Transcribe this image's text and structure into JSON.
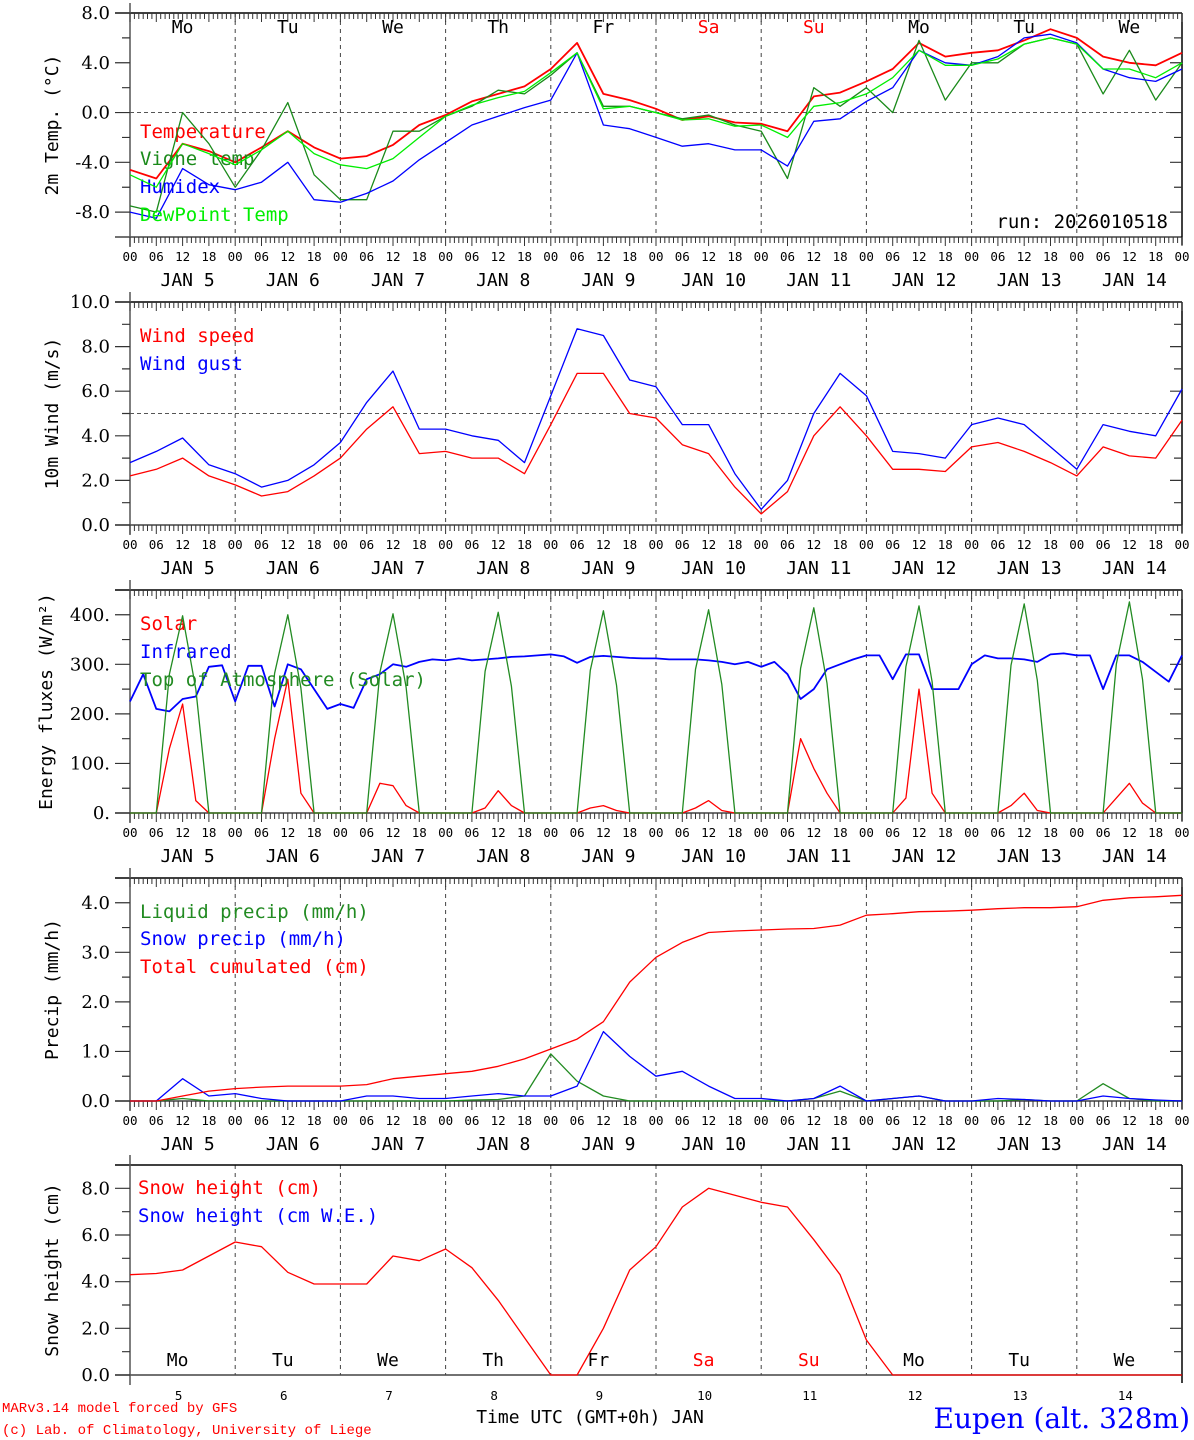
{
  "time_axis": {
    "hour_labels": [
      "00",
      "06",
      "12",
      "18"
    ],
    "final_hour_label": "00",
    "date_labels": [
      "JAN  5",
      "JAN  6",
      "JAN  7",
      "JAN  8",
      "JAN  9",
      "JAN 10",
      "JAN 11",
      "JAN 12",
      "JAN 13",
      "JAN 14"
    ],
    "day_labels": [
      "Mo",
      "Tu",
      "We",
      "Th",
      "Fr",
      "Sa",
      "Su",
      "Mo",
      "Tu",
      "We"
    ],
    "day_numbers": [
      "5",
      "6",
      "7",
      "8",
      "9",
      "10",
      "11",
      "12",
      "13",
      "14"
    ],
    "weekend_color": "#ff0000",
    "xlabel": "Time UTC (GMT+0h) JAN"
  },
  "footer": {
    "model": "MARv3.14 model forced by GFS",
    "credit": "(c) Lab. of Climatology, University of Liege",
    "location": "Eupen (alt. 328m)",
    "location_color": "#0000ff"
  },
  "chart_data": [
    {
      "type": "line",
      "ylabel": "2m Temp. (°C)",
      "ylim": [
        -10,
        8
      ],
      "yticks": [
        -8,
        -4,
        0,
        4,
        8
      ],
      "ytick_labels": [
        "-8.0",
        "-4.0",
        "0.0",
        "4.0",
        "8.0"
      ],
      "reference_line": 0,
      "annotation": "run: 2026010518",
      "step_hours": 6,
      "series": [
        {
          "name": "Temperature",
          "color": "#ff0000",
          "values": [
            -4.6,
            -5.3,
            -2.5,
            -3.1,
            -4.0,
            -2.8,
            -1.5,
            -2.8,
            -3.7,
            -3.5,
            -2.6,
            -1.0,
            -0.2,
            0.9,
            1.5,
            2.1,
            3.5,
            5.6,
            1.5,
            1.0,
            0.3,
            -0.6,
            -0.3,
            -0.8,
            -0.9,
            -1.5,
            1.3,
            1.6,
            2.5,
            3.5,
            5.6,
            4.5,
            4.8,
            5.0,
            5.8,
            6.7,
            6.0,
            4.5,
            4.0,
            3.8,
            4.8
          ]
        },
        {
          "name": "Vigne temp",
          "color": "#1a8a1a",
          "values": [
            -7.5,
            -8.0,
            0.0,
            -2.5,
            -6.0,
            -3.0,
            0.8,
            -5.0,
            -7.0,
            -7.0,
            -1.5,
            -1.5,
            -0.3,
            0.5,
            1.8,
            1.5,
            3.0,
            4.8,
            0.5,
            0.5,
            0.0,
            -0.5,
            -0.2,
            -1.0,
            -1.5,
            -5.3,
            2.0,
            0.5,
            2.0,
            0.0,
            5.8,
            1.0,
            4.0,
            4.0,
            5.5,
            6.0,
            5.5,
            1.5,
            5.0,
            1.0,
            4.0
          ]
        },
        {
          "name": "Humidex",
          "color": "#0000ff",
          "values": [
            -8.0,
            -8.5,
            -4.5,
            -5.8,
            -6.2,
            -5.6,
            -4.0,
            -7.0,
            -7.2,
            -6.5,
            -5.5,
            -3.8,
            -2.4,
            -1.0,
            -0.3,
            0.4,
            1.0,
            4.8,
            -1.0,
            -1.3,
            -2.0,
            -2.7,
            -2.5,
            -3.0,
            -3.0,
            -4.3,
            -0.7,
            -0.5,
            0.9,
            2.0,
            5.0,
            4.0,
            3.8,
            4.5,
            6.0,
            6.3,
            5.6,
            3.5,
            2.8,
            2.5,
            3.5
          ]
        },
        {
          "name": "DewPoint Temp",
          "color": "#00ee00",
          "values": [
            -5.0,
            -6.0,
            -2.5,
            -3.3,
            -4.2,
            -3.0,
            -1.5,
            -3.3,
            -4.2,
            -4.5,
            -3.7,
            -2.0,
            -0.3,
            0.6,
            1.2,
            1.7,
            3.2,
            4.8,
            0.3,
            0.5,
            0.0,
            -0.6,
            -0.5,
            -1.1,
            -1.0,
            -2.0,
            0.5,
            0.8,
            1.5,
            2.8,
            5.0,
            3.8,
            3.8,
            4.3,
            5.5,
            6.0,
            5.5,
            3.5,
            3.5,
            2.8,
            4.0
          ]
        }
      ]
    },
    {
      "type": "line",
      "ylabel": "10m Wind (m/s)",
      "ylim": [
        0,
        10
      ],
      "yticks": [
        0,
        2,
        4,
        6,
        8,
        10
      ],
      "ytick_labels": [
        "0.0",
        "2.0",
        "4.0",
        "6.0",
        "8.0",
        "10.0"
      ],
      "reference_line": 5,
      "step_hours": 6,
      "series": [
        {
          "name": "Wind speed",
          "color": "#ff0000",
          "values": [
            2.2,
            2.5,
            3.0,
            2.2,
            1.8,
            1.3,
            1.5,
            2.2,
            3.0,
            4.3,
            5.3,
            3.2,
            3.3,
            3.0,
            3.0,
            2.3,
            4.5,
            6.8,
            6.8,
            5.0,
            4.8,
            3.6,
            3.2,
            1.7,
            0.5,
            1.5,
            4.0,
            5.3,
            4.0,
            2.5,
            2.5,
            2.4,
            3.5,
            3.7,
            3.3,
            2.8,
            2.2,
            3.5,
            3.1,
            3.0,
            4.7
          ]
        },
        {
          "name": "Wind gust",
          "color": "#0000ff",
          "values": [
            2.8,
            3.3,
            3.9,
            2.7,
            2.3,
            1.7,
            2.0,
            2.7,
            3.7,
            5.5,
            6.9,
            4.3,
            4.3,
            4.0,
            3.8,
            2.8,
            5.8,
            8.8,
            8.5,
            6.5,
            6.2,
            4.5,
            4.5,
            2.3,
            0.7,
            2.0,
            5.0,
            6.8,
            5.8,
            3.3,
            3.2,
            3.0,
            4.5,
            4.8,
            4.5,
            3.5,
            2.5,
            4.5,
            4.2,
            4.0,
            6.1
          ]
        }
      ]
    },
    {
      "type": "line",
      "ylabel": "Energy fluxes (W/m²)",
      "ylim": [
        0,
        450
      ],
      "yticks": [
        0,
        100,
        200,
        300,
        400
      ],
      "ytick_labels": [
        "0.",
        "100.",
        "200.",
        "300.",
        "400."
      ],
      "step_hours": 3,
      "series": [
        {
          "name": "Solar",
          "color": "#ff0000",
          "values": [
            0,
            0,
            0,
            130,
            220,
            25,
            0,
            0,
            0,
            0,
            0,
            150,
            270,
            40,
            0,
            0,
            0,
            0,
            0,
            60,
            55,
            15,
            0,
            0,
            0,
            0,
            0,
            10,
            45,
            15,
            0,
            0,
            0,
            0,
            0,
            10,
            15,
            5,
            0,
            0,
            0,
            0,
            0,
            10,
            25,
            5,
            0,
            0,
            0,
            0,
            0,
            150,
            90,
            40,
            0,
            0,
            0,
            0,
            0,
            30,
            250,
            40,
            0,
            0,
            0,
            0,
            0,
            15,
            40,
            5,
            0,
            0,
            0,
            0,
            0,
            30,
            60,
            20,
            0,
            0,
            0
          ]
        },
        {
          "name": "Infrared",
          "color": "#0000ff",
          "values": [
            225,
            280,
            210,
            205,
            230,
            235,
            295,
            298,
            225,
            297,
            297,
            215,
            300,
            290,
            250,
            210,
            220,
            212,
            270,
            280,
            300,
            295,
            305,
            310,
            308,
            312,
            308,
            310,
            312,
            315,
            316,
            318,
            320,
            316,
            303,
            315,
            317,
            315,
            313,
            312,
            312,
            310,
            310,
            310,
            308,
            305,
            300,
            305,
            295,
            305,
            280,
            230,
            250,
            290,
            300,
            310,
            318,
            318,
            270,
            320,
            320,
            250,
            250,
            250,
            300,
            318,
            312,
            312,
            310,
            305,
            320,
            322,
            318,
            318,
            250,
            318,
            318,
            305,
            285,
            265,
            318
          ]
        },
        {
          "name": "Top of Atmosphere (Solar)",
          "color": "#228b22",
          "values": [
            0,
            0,
            0,
            280,
            398,
            250,
            0,
            0,
            0,
            0,
            0,
            282,
            400,
            252,
            0,
            0,
            0,
            0,
            0,
            284,
            402,
            254,
            0,
            0,
            0,
            0,
            0,
            286,
            405,
            256,
            0,
            0,
            0,
            0,
            0,
            288,
            408,
            258,
            0,
            0,
            0,
            0,
            0,
            290,
            410,
            260,
            0,
            0,
            0,
            0,
            0,
            292,
            414,
            262,
            0,
            0,
            0,
            0,
            0,
            295,
            418,
            265,
            0,
            0,
            0,
            0,
            0,
            298,
            422,
            268,
            0,
            0,
            0,
            0,
            0,
            300,
            426,
            270,
            0,
            0,
            0
          ]
        }
      ]
    },
    {
      "type": "line",
      "ylabel": "Precip (mm/h)",
      "ylim": [
        0,
        4.5
      ],
      "yticks": [
        0,
        1,
        2,
        3,
        4
      ],
      "ytick_labels": [
        "0.0",
        "1.0",
        "2.0",
        "3.0",
        "4.0"
      ],
      "step_hours": 6,
      "series": [
        {
          "name": "Liquid precip (mm/h)",
          "color": "#228b22",
          "values": [
            0,
            0,
            0.05,
            0,
            0,
            0,
            0,
            0,
            0,
            0,
            0,
            0,
            0,
            0.02,
            0.03,
            0.1,
            0.95,
            0.4,
            0.1,
            0,
            0,
            0,
            0,
            0,
            0,
            0,
            0.05,
            0.2,
            0,
            0.05,
            0.1,
            0,
            0,
            0,
            0.03,
            0,
            0,
            0.35,
            0.05,
            0,
            0
          ]
        },
        {
          "name": "Snow precip (mm/h)",
          "color": "#0000ff",
          "values": [
            0,
            0,
            0.45,
            0.1,
            0.15,
            0.05,
            0,
            0,
            0,
            0.1,
            0.1,
            0.05,
            0.05,
            0.1,
            0.15,
            0.1,
            0.1,
            0.3,
            1.4,
            0.9,
            0.5,
            0.6,
            0.3,
            0.05,
            0.05,
            0,
            0.05,
            0.3,
            0,
            0.05,
            0.1,
            0,
            0,
            0.05,
            0.03,
            0,
            0,
            0.1,
            0.05,
            0.02,
            0
          ]
        },
        {
          "name": "Total cumulated (cm)",
          "color": "#ff0000",
          "values": [
            0,
            0,
            0.1,
            0.2,
            0.25,
            0.28,
            0.3,
            0.3,
            0.3,
            0.33,
            0.45,
            0.5,
            0.55,
            0.6,
            0.7,
            0.85,
            1.05,
            1.25,
            1.6,
            2.4,
            2.9,
            3.2,
            3.4,
            3.43,
            3.45,
            3.47,
            3.48,
            3.55,
            3.75,
            3.78,
            3.82,
            3.83,
            3.85,
            3.88,
            3.9,
            3.9,
            3.92,
            4.05,
            4.1,
            4.12,
            4.15
          ]
        }
      ]
    },
    {
      "type": "line",
      "ylabel": "Snow height (cm)",
      "ylim": [
        0,
        9
      ],
      "yticks": [
        0,
        2,
        4,
        6,
        8
      ],
      "ytick_labels": [
        "0.0",
        "2.0",
        "4.0",
        "6.0",
        "8.0"
      ],
      "step_hours": 6,
      "series": [
        {
          "name": "Snow height (cm)",
          "color": "#ff0000",
          "values": [
            4.3,
            4.35,
            4.5,
            5.1,
            5.7,
            5.5,
            4.4,
            3.9,
            3.9,
            3.9,
            5.1,
            4.9,
            5.4,
            4.6,
            3.2,
            1.6,
            0,
            0,
            2.0,
            4.5,
            5.5,
            7.2,
            8.0,
            7.7,
            7.4,
            7.2,
            5.8,
            4.3,
            1.5,
            0,
            0,
            0,
            0,
            0,
            0,
            0,
            0,
            0,
            0,
            0,
            0
          ]
        },
        {
          "name": "Snow height (cm W.E.)",
          "color": "#0000ff",
          "values": []
        }
      ]
    }
  ]
}
